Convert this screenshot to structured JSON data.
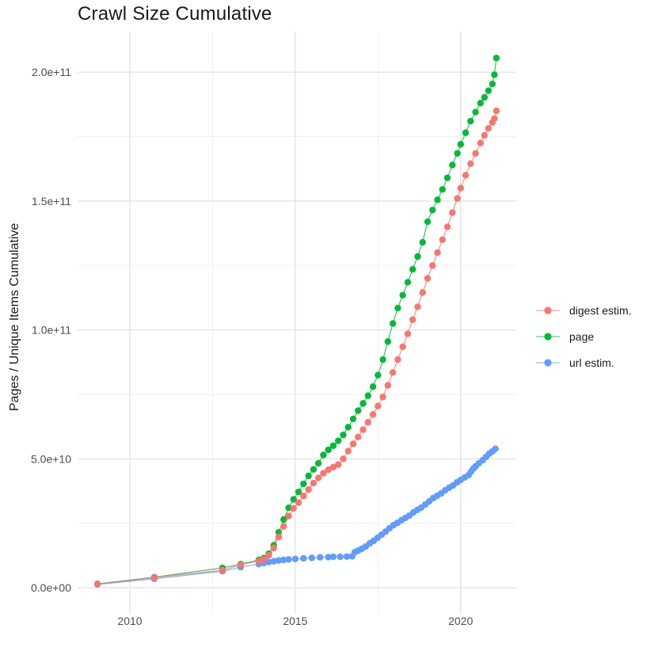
{
  "chart_data": {
    "type": "line",
    "title": "Crawl Size Cumulative",
    "ylabel": "Pages / Unique Items Cumulative",
    "xlabel": "",
    "grid": "on",
    "legend_position": "right",
    "y_unit": "values stored in billions (1e9); axis labels shown in scientific notation",
    "x_axis": {
      "range": [
        2008.42,
        2021.68
      ],
      "ticks": [
        {
          "value": 2010,
          "label": "2010"
        },
        {
          "value": 2015,
          "label": "2015"
        },
        {
          "value": 2020,
          "label": "2020"
        }
      ],
      "minor_ticks": [
        2012.5,
        2017.5
      ]
    },
    "y_axis": {
      "range_billions": [
        -10.1,
        215.7
      ],
      "ticks": [
        {
          "value_billions": 0,
          "label": "0.0e+00"
        },
        {
          "value_billions": 50,
          "label": "5.0e+10"
        },
        {
          "value_billions": 100,
          "label": "1.0e+11"
        },
        {
          "value_billions": 150,
          "label": "1.5e+11"
        },
        {
          "value_billions": 200,
          "label": "2.0e+11"
        }
      ],
      "minor_ticks_billions": [
        25,
        75,
        125,
        175
      ]
    },
    "series": [
      {
        "name": "digest estim.",
        "color": "#F8766D",
        "z": 3,
        "points": [
          [
            2009.02,
            1.4
          ],
          [
            2010.74,
            4.0
          ],
          [
            2012.8,
            6.8
          ],
          [
            2013.35,
            8.9
          ],
          [
            2013.9,
            10.4
          ],
          [
            2014.05,
            11.0
          ],
          [
            2014.2,
            12.6
          ],
          [
            2014.35,
            15.4
          ],
          [
            2014.5,
            19.7
          ],
          [
            2014.65,
            23.8
          ],
          [
            2014.8,
            27.8
          ],
          [
            2014.95,
            30.8
          ],
          [
            2015.1,
            33.0
          ],
          [
            2015.25,
            35.6
          ],
          [
            2015.4,
            38.1
          ],
          [
            2015.55,
            40.6
          ],
          [
            2015.7,
            42.6
          ],
          [
            2015.85,
            44.4
          ],
          [
            2016.0,
            45.8
          ],
          [
            2016.15,
            46.8
          ],
          [
            2016.3,
            47.8
          ],
          [
            2016.45,
            50.0
          ],
          [
            2016.6,
            53.0
          ],
          [
            2016.75,
            55.8
          ],
          [
            2016.9,
            58.5
          ],
          [
            2017.05,
            61.3
          ],
          [
            2017.2,
            64.2
          ],
          [
            2017.35,
            67.2
          ],
          [
            2017.5,
            70.5
          ],
          [
            2017.65,
            74.0
          ],
          [
            2017.8,
            78.5
          ],
          [
            2017.95,
            83.5
          ],
          [
            2018.1,
            88.5
          ],
          [
            2018.25,
            93.5
          ],
          [
            2018.4,
            98.5
          ],
          [
            2018.55,
            104.0
          ],
          [
            2018.7,
            109.0
          ],
          [
            2018.85,
            114.5
          ],
          [
            2019.0,
            120.0
          ],
          [
            2019.15,
            125.0
          ],
          [
            2019.3,
            130.0
          ],
          [
            2019.45,
            135.0
          ],
          [
            2019.6,
            140.0
          ],
          [
            2019.75,
            145.5
          ],
          [
            2019.9,
            151.0
          ],
          [
            2020.0,
            155.0
          ],
          [
            2020.15,
            160.0
          ],
          [
            2020.3,
            164.5
          ],
          [
            2020.45,
            168.5
          ],
          [
            2020.6,
            172.5
          ],
          [
            2020.72,
            175.5
          ],
          [
            2020.84,
            178.2
          ],
          [
            2020.96,
            180.5
          ],
          [
            2021.02,
            182.0
          ],
          [
            2021.08,
            185.0
          ]
        ]
      },
      {
        "name": "page",
        "color": "#00BA38",
        "z": 1,
        "points": [
          [
            2009.02,
            1.5
          ],
          [
            2010.74,
            4.1
          ],
          [
            2012.8,
            7.7
          ],
          [
            2013.35,
            9.2
          ],
          [
            2013.9,
            10.8
          ],
          [
            2014.05,
            11.5
          ],
          [
            2014.2,
            13.2
          ],
          [
            2014.35,
            16.5
          ],
          [
            2014.5,
            21.5
          ],
          [
            2014.65,
            26.5
          ],
          [
            2014.8,
            31.0
          ],
          [
            2014.95,
            34.3
          ],
          [
            2015.1,
            37.2
          ],
          [
            2015.25,
            40.3
          ],
          [
            2015.4,
            43.4
          ],
          [
            2015.55,
            45.9
          ],
          [
            2015.7,
            48.3
          ],
          [
            2015.85,
            51.5
          ],
          [
            2016.0,
            53.5
          ],
          [
            2016.15,
            55.1
          ],
          [
            2016.3,
            57.0
          ],
          [
            2016.45,
            59.3
          ],
          [
            2016.6,
            62.3
          ],
          [
            2016.75,
            65.5
          ],
          [
            2016.9,
            68.7
          ],
          [
            2017.05,
            71.5
          ],
          [
            2017.2,
            74.5
          ],
          [
            2017.35,
            78.0
          ],
          [
            2017.5,
            82.5
          ],
          [
            2017.65,
            88.5
          ],
          [
            2017.8,
            95.5
          ],
          [
            2017.95,
            102.5
          ],
          [
            2018.1,
            108.5
          ],
          [
            2018.25,
            113.5
          ],
          [
            2018.4,
            118.5
          ],
          [
            2018.55,
            123.5
          ],
          [
            2018.7,
            128.5
          ],
          [
            2018.85,
            134.0
          ],
          [
            2019.0,
            142.0
          ],
          [
            2019.15,
            146.5
          ],
          [
            2019.3,
            150.5
          ],
          [
            2019.45,
            154.5
          ],
          [
            2019.6,
            159.0
          ],
          [
            2019.75,
            164.0
          ],
          [
            2019.9,
            168.5
          ],
          [
            2020.0,
            172.0
          ],
          [
            2020.15,
            176.5
          ],
          [
            2020.3,
            181.0
          ],
          [
            2020.45,
            184.5
          ],
          [
            2020.6,
            188.0
          ],
          [
            2020.72,
            190.2
          ],
          [
            2020.84,
            192.8
          ],
          [
            2020.96,
            195.4
          ],
          [
            2021.02,
            199.0
          ],
          [
            2021.08,
            205.5
          ]
        ]
      },
      {
        "name": "url estim.",
        "color": "#619CFF",
        "z": 2,
        "points": [
          [
            2009.02,
            1.3
          ],
          [
            2010.74,
            3.5
          ],
          [
            2012.8,
            6.4
          ],
          [
            2013.35,
            8.0
          ],
          [
            2013.9,
            9.2
          ],
          [
            2014.05,
            9.6
          ],
          [
            2014.2,
            10.0
          ],
          [
            2014.35,
            10.3
          ],
          [
            2014.5,
            10.6
          ],
          [
            2014.65,
            10.8
          ],
          [
            2014.8,
            11.0
          ],
          [
            2015.0,
            11.2
          ],
          [
            2015.25,
            11.4
          ],
          [
            2015.5,
            11.6
          ],
          [
            2015.75,
            11.8
          ],
          [
            2016.0,
            11.9
          ],
          [
            2016.15,
            12.0
          ],
          [
            2016.36,
            12.0
          ],
          [
            2016.56,
            12.1
          ],
          [
            2016.72,
            12.2
          ],
          [
            2016.8,
            13.8
          ],
          [
            2016.9,
            14.4
          ],
          [
            2017.01,
            15.1
          ],
          [
            2017.13,
            16.0
          ],
          [
            2017.25,
            17.2
          ],
          [
            2017.37,
            18.2
          ],
          [
            2017.49,
            19.4
          ],
          [
            2017.61,
            20.6
          ],
          [
            2017.73,
            21.8
          ],
          [
            2017.85,
            23.1
          ],
          [
            2017.97,
            24.3
          ],
          [
            2018.09,
            25.2
          ],
          [
            2018.21,
            26.2
          ],
          [
            2018.33,
            27.1
          ],
          [
            2018.45,
            28.0
          ],
          [
            2018.57,
            29.2
          ],
          [
            2018.69,
            30.2
          ],
          [
            2018.81,
            31.1
          ],
          [
            2018.93,
            32.3
          ],
          [
            2019.05,
            33.5
          ],
          [
            2019.17,
            34.8
          ],
          [
            2019.29,
            35.7
          ],
          [
            2019.41,
            36.6
          ],
          [
            2019.53,
            37.8
          ],
          [
            2019.65,
            38.8
          ],
          [
            2019.77,
            39.7
          ],
          [
            2019.89,
            40.9
          ],
          [
            2020.0,
            41.8
          ],
          [
            2020.12,
            42.8
          ],
          [
            2020.24,
            43.7
          ],
          [
            2020.31,
            45.0
          ],
          [
            2020.38,
            46.2
          ],
          [
            2020.45,
            47.1
          ],
          [
            2020.55,
            48.3
          ],
          [
            2020.67,
            49.5
          ],
          [
            2020.77,
            50.8
          ],
          [
            2020.86,
            52.0
          ],
          [
            2020.96,
            52.9
          ],
          [
            2021.05,
            53.9
          ]
        ]
      }
    ]
  },
  "styles": {
    "background": "#ffffff",
    "grid_major_color": "#e2e2e2",
    "grid_minor_color": "#efefef",
    "tick_label_color": "#4d4d4d",
    "text_color": "#1a1a1a"
  }
}
